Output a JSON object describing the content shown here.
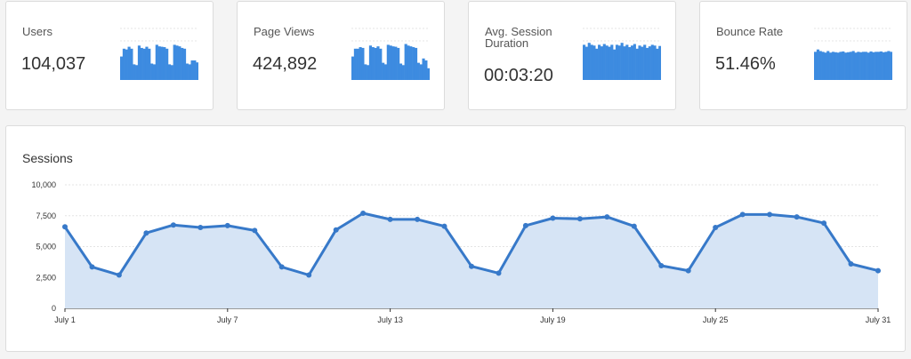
{
  "kpis": [
    {
      "title": "Users",
      "value": "104,037",
      "bars": [
        0.6,
        0.8,
        0.78,
        0.85,
        0.8,
        0.4,
        0.38,
        0.88,
        0.82,
        0.8,
        0.85,
        0.8,
        0.42,
        0.4,
        0.9,
        0.86,
        0.85,
        0.84,
        0.8,
        0.4,
        0.38,
        0.9,
        0.88,
        0.86,
        0.82,
        0.8,
        0.42,
        0.4,
        0.5,
        0.5,
        0.45
      ]
    },
    {
      "title": "Page Views",
      "value": "424,892",
      "bars": [
        0.6,
        0.8,
        0.8,
        0.84,
        0.82,
        0.4,
        0.38,
        0.88,
        0.84,
        0.82,
        0.86,
        0.8,
        0.44,
        0.4,
        0.9,
        0.88,
        0.86,
        0.85,
        0.82,
        0.42,
        0.38,
        0.92,
        0.88,
        0.86,
        0.84,
        0.82,
        0.44,
        0.4,
        0.55,
        0.5,
        0.3
      ]
    },
    {
      "title": "Avg. Session Duration",
      "value": "00:03:20",
      "bars": [
        0.9,
        0.85,
        0.95,
        0.9,
        0.88,
        0.8,
        0.9,
        0.86,
        0.92,
        0.88,
        0.85,
        0.9,
        0.78,
        0.9,
        0.88,
        0.95,
        0.86,
        0.9,
        0.84,
        0.88,
        0.92,
        0.8,
        0.88,
        0.85,
        0.9,
        0.82,
        0.86,
        0.9,
        0.88,
        0.8,
        0.87
      ]
    },
    {
      "title": "Bounce Rate",
      "value": "51.46%",
      "bars": [
        0.72,
        0.78,
        0.74,
        0.72,
        0.7,
        0.74,
        0.7,
        0.72,
        0.71,
        0.7,
        0.72,
        0.73,
        0.7,
        0.71,
        0.72,
        0.74,
        0.7,
        0.72,
        0.71,
        0.72,
        0.72,
        0.7,
        0.73,
        0.71,
        0.72,
        0.72,
        0.73,
        0.71,
        0.72,
        0.74,
        0.72
      ]
    }
  ],
  "chart": {
    "title": "Sessions"
  },
  "chart_data": {
    "type": "area",
    "title": "Sessions",
    "x": [
      "July 1",
      "July 2",
      "July 3",
      "July 4",
      "July 5",
      "July 6",
      "July 7",
      "July 8",
      "July 9",
      "July 10",
      "July 11",
      "July 12",
      "July 13",
      "July 14",
      "July 15",
      "July 16",
      "July 17",
      "July 18",
      "July 19",
      "July 20",
      "July 21",
      "July 22",
      "July 23",
      "July 24",
      "July 25",
      "July 26",
      "July 27",
      "July 28",
      "July 29",
      "July 30",
      "July 31"
    ],
    "x_tick_labels": [
      "July 1",
      "July 7",
      "July 13",
      "July 19",
      "July 25",
      "July 31"
    ],
    "y_tick_labels": [
      "0",
      "2,500",
      "5,000",
      "7,500",
      "10,000"
    ],
    "ylim": [
      0,
      10000
    ],
    "series": [
      {
        "values": [
          6600,
          3350,
          2700,
          6100,
          6750,
          6550,
          6700,
          6300,
          3350,
          2700,
          6350,
          7700,
          7200,
          7200,
          6650,
          3400,
          2850,
          6700,
          7300,
          7250,
          7400,
          6650,
          3450,
          3050,
          6550,
          7600,
          7600,
          7400,
          6900,
          3600,
          3050
        ]
      }
    ],
    "grid": true,
    "colors": {
      "line": "#3779c9",
      "fill": "#d6e4f5",
      "bars": "#3d8be0",
      "grid": "#e4e4e4"
    }
  }
}
